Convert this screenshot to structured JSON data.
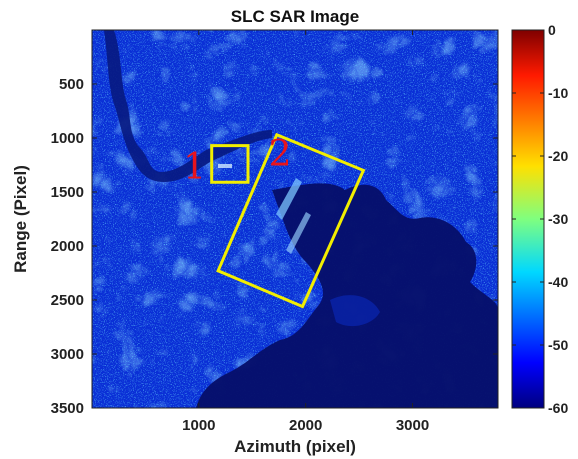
{
  "chart_data": {
    "type": "heatmap",
    "title": "SLC SAR Image",
    "xlabel": "Azimuth (pixel)",
    "ylabel": "Range (Pixel)",
    "xlim": [
      0,
      3800
    ],
    "ylim": [
      0,
      3500
    ],
    "y_reversed": true,
    "xticks": [
      1000,
      2000,
      3000
    ],
    "yticks": [
      500,
      1000,
      1500,
      2000,
      2500,
      3000,
      3500
    ],
    "colorbar": {
      "range": [
        -60,
        0
      ],
      "ticks": [
        0,
        -10,
        -20,
        -30,
        -40,
        -50,
        -60
      ],
      "colormap": "jet"
    },
    "annotations": [
      {
        "label": "1",
        "shape": "rectangle",
        "color": "#f2ee00",
        "corners": [
          [
            1120,
            1070
          ],
          [
            1460,
            1070
          ],
          [
            1460,
            1410
          ],
          [
            1120,
            1410
          ]
        ],
        "label_at": [
          960,
          1270
        ]
      },
      {
        "label": "2",
        "shape": "rotated-rectangle",
        "color": "#f2ee00",
        "corners": [
          [
            1730,
            970
          ],
          [
            2540,
            1300
          ],
          [
            1970,
            2560
          ],
          [
            1180,
            2230
          ]
        ],
        "label_at": [
          1760,
          1150
        ]
      }
    ]
  }
}
